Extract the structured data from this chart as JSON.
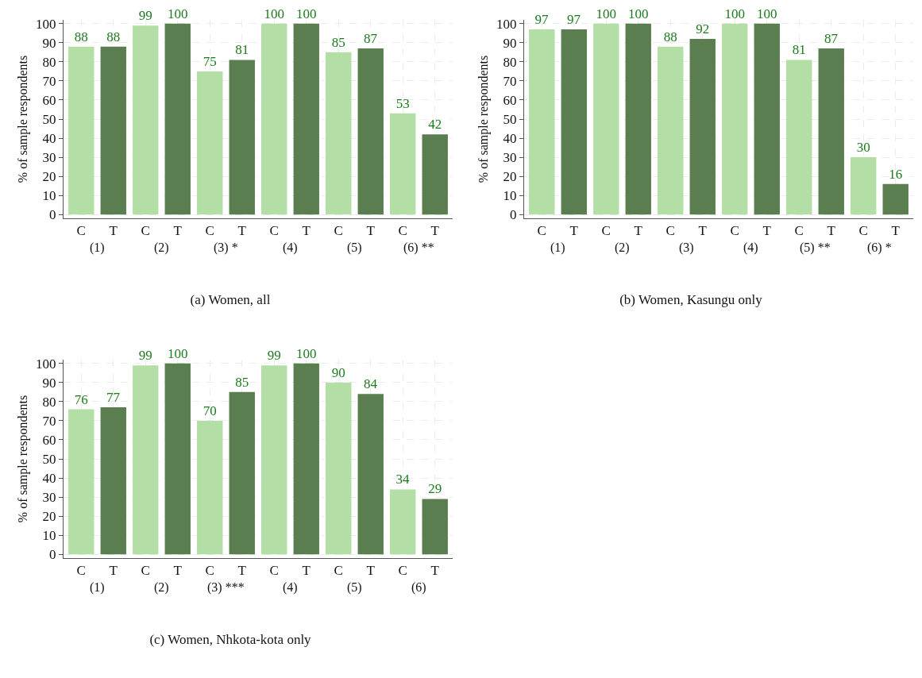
{
  "chart_data": [
    {
      "type": "bar",
      "title": "(a) Women, all",
      "ylabel": "% of sample respondents",
      "categories": [
        "C",
        "T",
        "C",
        "T",
        "C",
        "T",
        "C",
        "T",
        "C",
        "T",
        "C",
        "T"
      ],
      "values": [
        88,
        88,
        99,
        100,
        75,
        81,
        100,
        100,
        85,
        87,
        53,
        42
      ],
      "colors": [
        "#b3dea5",
        "#5a7e50",
        "#b3dea5",
        "#5a7e50",
        "#b3dea5",
        "#5a7e50",
        "#b3dea5",
        "#5a7e50",
        "#b3dea5",
        "#5a7e50",
        "#b3dea5",
        "#5a7e50"
      ],
      "data_labels": true,
      "ylim": [
        -2,
        102
      ],
      "yticks": [
        0,
        10,
        20,
        30,
        40,
        50,
        60,
        70,
        80,
        90,
        100
      ],
      "grid": true,
      "annotations": [
        "(1)",
        "(2)",
        "(3) *",
        "(4)",
        "(5)",
        "(6) **"
      ]
    },
    {
      "type": "bar",
      "title": "(b) Women, Kasungu only",
      "ylabel": "% of sample respondents",
      "categories": [
        "C",
        "T",
        "C",
        "T",
        "C",
        "T",
        "C",
        "T",
        "C",
        "T",
        "C",
        "T"
      ],
      "values": [
        97,
        97,
        100,
        100,
        88,
        92,
        100,
        100,
        81,
        87,
        30,
        16
      ],
      "colors": [
        "#b3dea5",
        "#5a7e50",
        "#b3dea5",
        "#5a7e50",
        "#b3dea5",
        "#5a7e50",
        "#b3dea5",
        "#5a7e50",
        "#b3dea5",
        "#5a7e50",
        "#b3dea5",
        "#5a7e50"
      ],
      "data_labels": true,
      "ylim": [
        -2,
        102
      ],
      "yticks": [
        0,
        10,
        20,
        30,
        40,
        50,
        60,
        70,
        80,
        90,
        100
      ],
      "grid": true,
      "annotations": [
        "(1)",
        "(2)",
        "(3)",
        "(4)",
        "(5) **",
        "(6) *"
      ]
    },
    {
      "type": "bar",
      "title": "(c) Women, Nhkota-kota only",
      "ylabel": "% of sample respondents",
      "categories": [
        "C",
        "T",
        "C",
        "T",
        "C",
        "T",
        "C",
        "T",
        "C",
        "T",
        "C",
        "T"
      ],
      "values": [
        76,
        77,
        99,
        100,
        70,
        85,
        99,
        100,
        90,
        84,
        34,
        29
      ],
      "colors": [
        "#b3dea5",
        "#5a7e50",
        "#b3dea5",
        "#5a7e50",
        "#b3dea5",
        "#5a7e50",
        "#b3dea5",
        "#5a7e50",
        "#b3dea5",
        "#5a7e50",
        "#b3dea5",
        "#5a7e50"
      ],
      "data_labels": true,
      "ylim": [
        -2,
        102
      ],
      "yticks": [
        0,
        10,
        20,
        30,
        40,
        50,
        60,
        70,
        80,
        90,
        100
      ],
      "grid": true,
      "annotations": [
        "(1)",
        "(2)",
        "(3) ***",
        "(4)",
        "(5)",
        "(6)"
      ]
    }
  ]
}
